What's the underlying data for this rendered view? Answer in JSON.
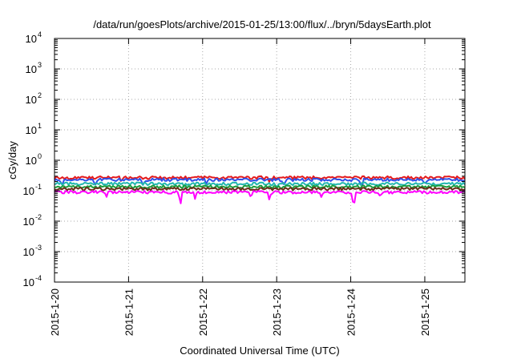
{
  "chart_data": {
    "type": "line",
    "title": "/data/run/goesPlots/archive/2015-01-25/13:00/flux/../bryn/5daysEarth.plot",
    "xlabel": "Coordinated Universal Time (UTC)",
    "ylabel": "cGy/day",
    "y_scale": "log",
    "ylim": [
      "1e-4",
      "1e4"
    ],
    "y_ticks": [
      {
        "base": "10",
        "exp": "-4",
        "value": 0.0001
      },
      {
        "base": "10",
        "exp": "-3",
        "value": 0.001
      },
      {
        "base": "10",
        "exp": "-2",
        "value": 0.01
      },
      {
        "base": "10",
        "exp": "-1",
        "value": 0.1
      },
      {
        "base": "10",
        "exp": "0",
        "value": 1
      },
      {
        "base": "10",
        "exp": "1",
        "value": 10
      },
      {
        "base": "10",
        "exp": "2",
        "value": 100
      },
      {
        "base": "10",
        "exp": "3",
        "value": 1000
      },
      {
        "base": "10",
        "exp": "4",
        "value": 10000
      }
    ],
    "x_range": [
      "2015-01-20T00:00",
      "2015-01-25T13:00"
    ],
    "x_ticks": [
      "2015-1-20",
      "2015-1-21",
      "2015-1-22",
      "2015-1-23",
      "2015-1-24",
      "2015-1-25"
    ],
    "grid": true,
    "series": [
      {
        "color": "#e41a1c",
        "base": 0.27,
        "dips": [
          [
            0.2,
            0.22
          ],
          [
            0.9,
            0.2
          ],
          [
            2.9,
            0.19
          ],
          [
            4.6,
            0.24
          ]
        ]
      },
      {
        "color": "#3050e8",
        "base": 0.23,
        "dips": [
          [
            0.1,
            0.14
          ],
          [
            0.55,
            0.15
          ],
          [
            1.2,
            0.14
          ],
          [
            2.05,
            0.15
          ],
          [
            3.1,
            0.14
          ],
          [
            4.15,
            0.12
          ],
          [
            5.0,
            0.15
          ]
        ]
      },
      {
        "color": "#22b8b0",
        "base": 0.17,
        "dips": [
          [
            1.75,
            0.13
          ],
          [
            3.0,
            0.12
          ]
        ]
      },
      {
        "color": "#1c9c3c",
        "base": 0.135,
        "dips": []
      },
      {
        "color": "#6b2d1a",
        "base": 0.115,
        "dips": []
      },
      {
        "color": "#ff00ff",
        "base": 0.09,
        "dips": [
          [
            0.7,
            0.06
          ],
          [
            1.7,
            0.03
          ],
          [
            1.9,
            0.05
          ],
          [
            2.65,
            0.06
          ],
          [
            2.9,
            0.05
          ],
          [
            3.6,
            0.06
          ],
          [
            4.04,
            0.025
          ],
          [
            4.4,
            0.06
          ]
        ]
      }
    ]
  }
}
